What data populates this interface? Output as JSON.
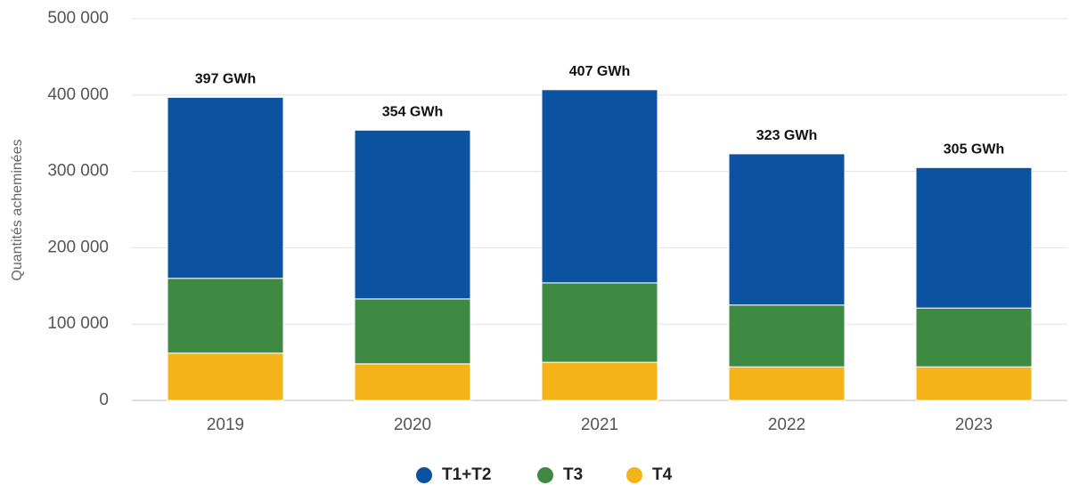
{
  "chart_data": {
    "type": "stacked_bar",
    "y_label": "Quantités acheminées",
    "categories": [
      "2019",
      "2020",
      "2021",
      "2022",
      "2023"
    ],
    "series": [
      {
        "name": "T4",
        "color": "#f5b31a",
        "values": [
          62000,
          48000,
          50000,
          44000,
          44000
        ]
      },
      {
        "name": "T3",
        "color": "#3e8a43",
        "values": [
          98000,
          85000,
          104000,
          81000,
          77000
        ]
      },
      {
        "name": "T1+T2",
        "color": "#0b53a0",
        "values": [
          237000,
          221000,
          253000,
          198000,
          184000
        ]
      }
    ],
    "totals": [
      397000,
      354000,
      407000,
      323000,
      305000
    ],
    "total_labels": [
      "397 GWh",
      "354 GWh",
      "407 GWh",
      "323 GWh",
      "305 GWh"
    ],
    "legend_order": [
      2,
      1,
      0
    ],
    "ylim": [
      0,
      500000
    ],
    "yticks": [
      0,
      {
        "value": 100000,
        "label": "100 000"
      },
      {
        "value": 200000,
        "label": "200 000"
      },
      {
        "value": 300000,
        "label": "300 000"
      },
      {
        "value": 400000,
        "label": "400 000"
      },
      {
        "value": 500000,
        "label": "500 000"
      }
    ],
    "grid": true
  }
}
